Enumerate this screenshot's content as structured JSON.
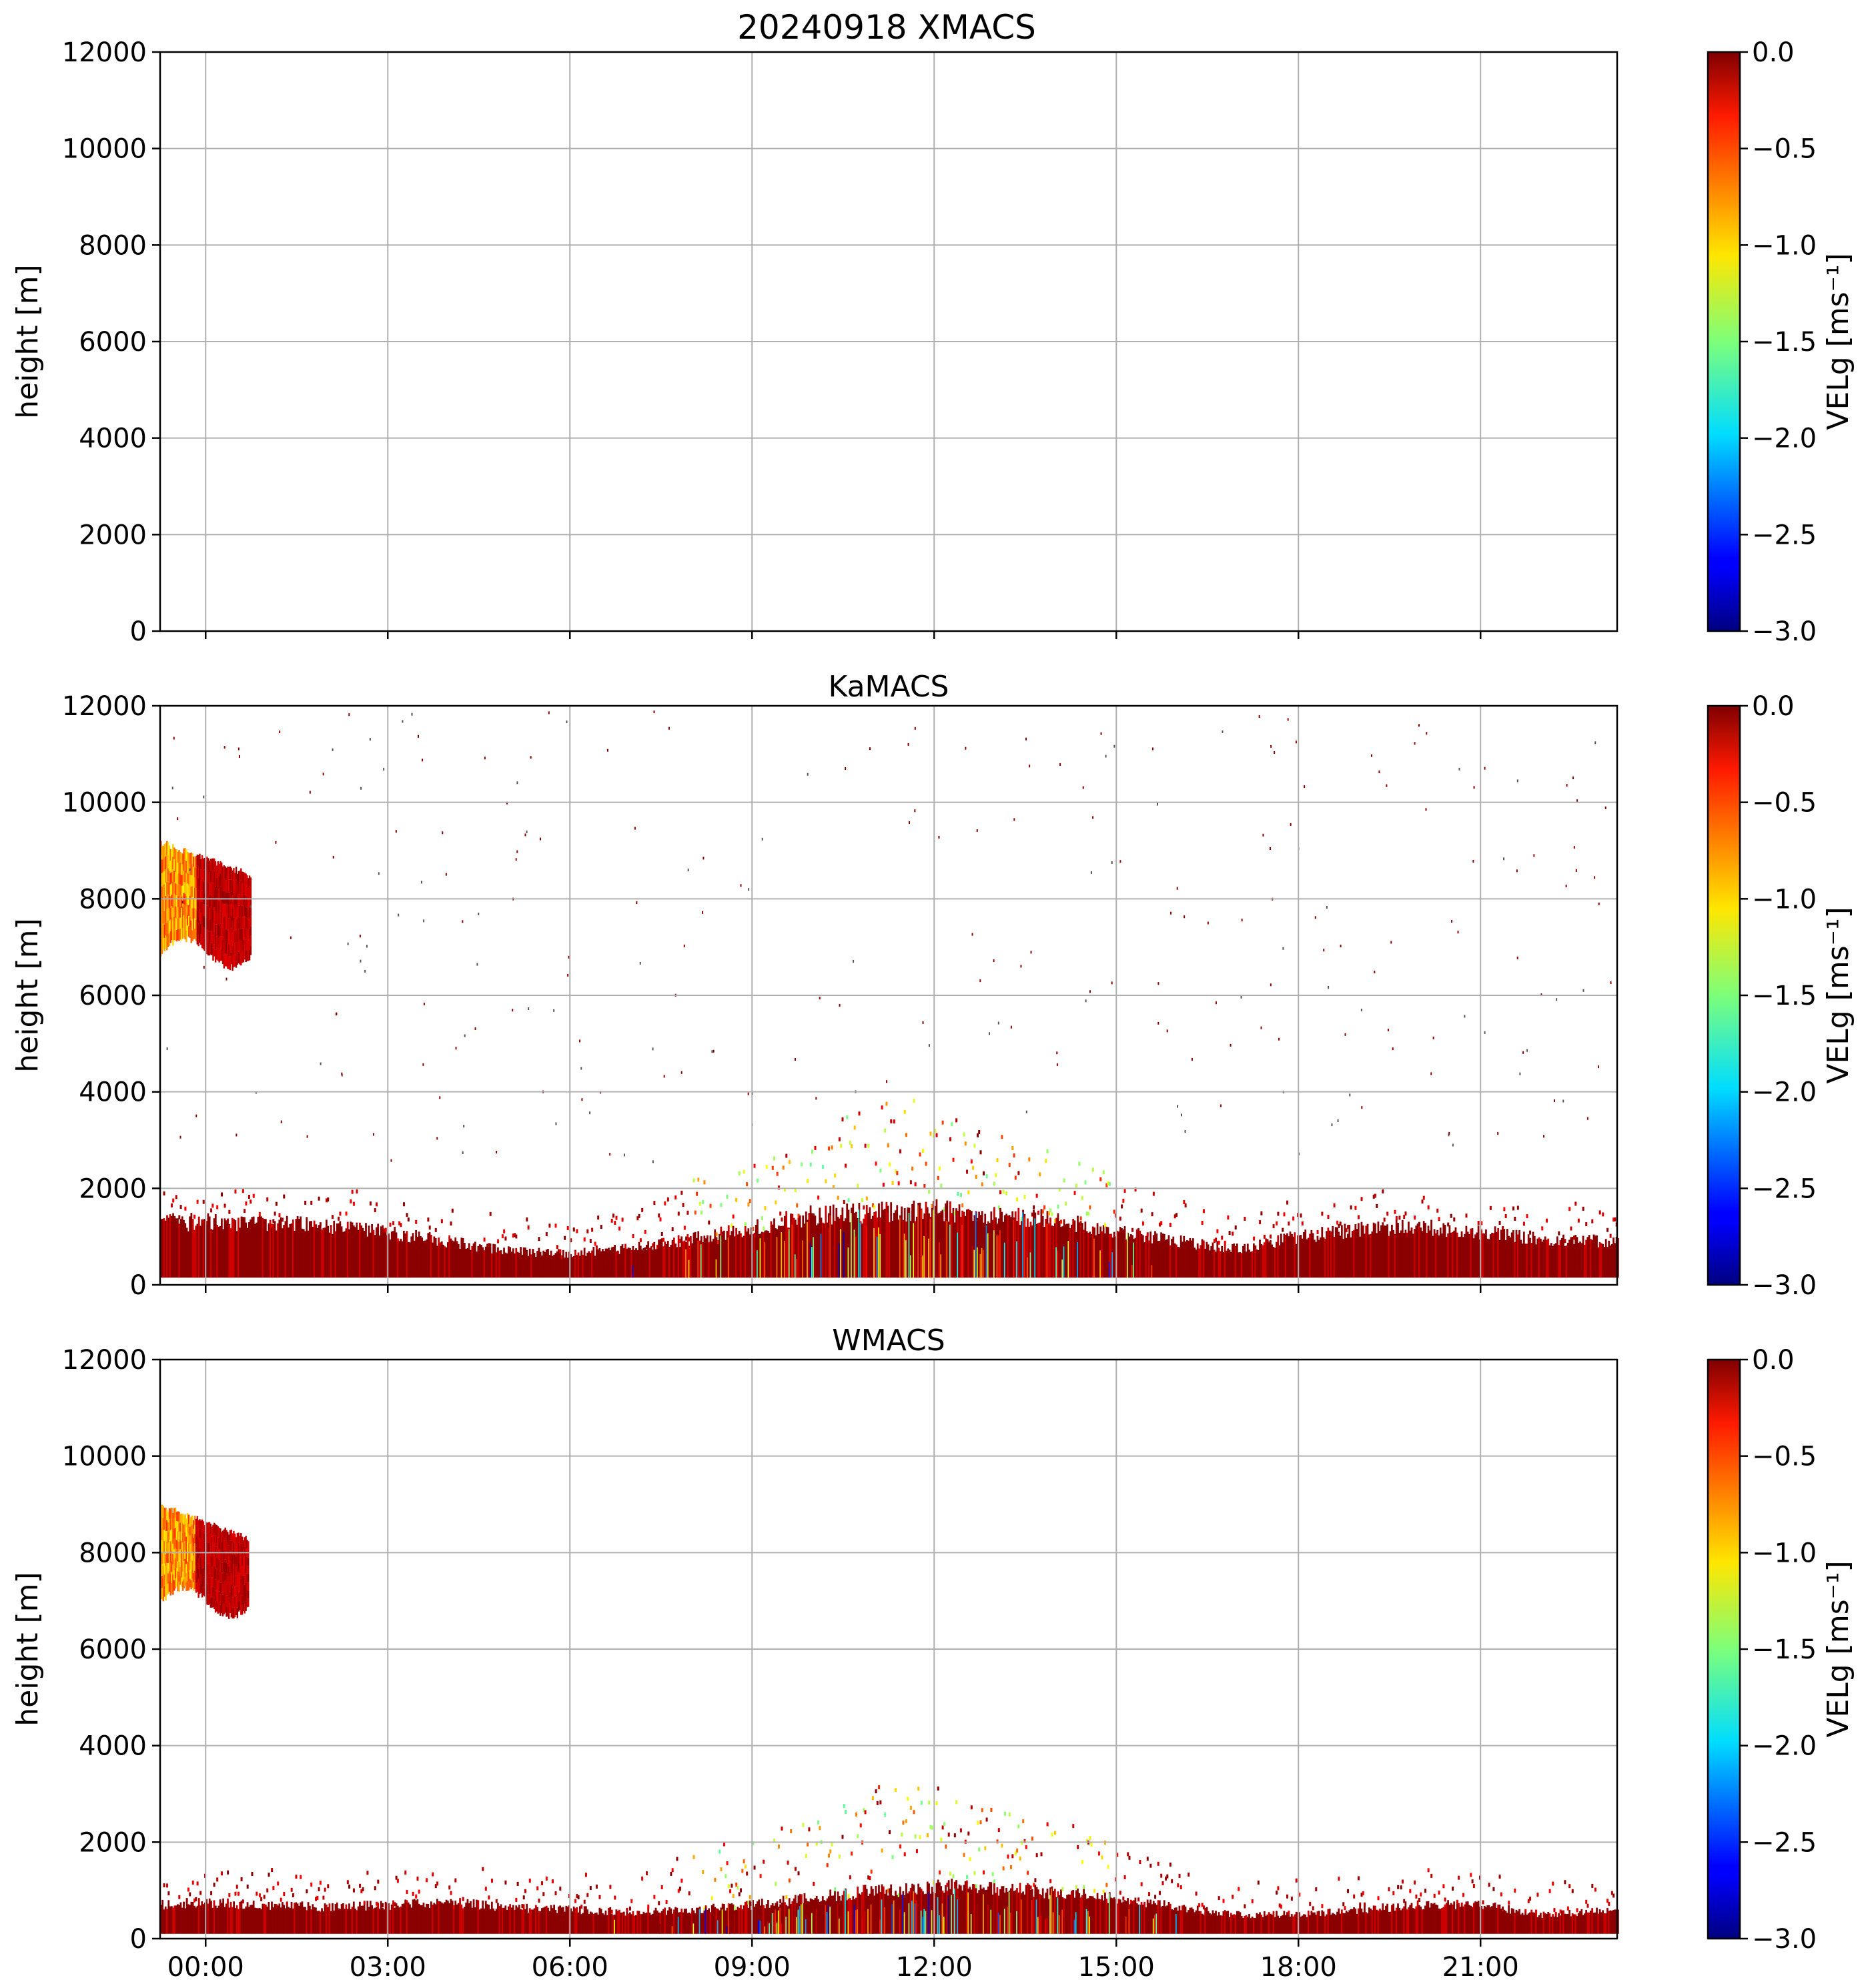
{
  "figure": {
    "title": "20240918 XMACS"
  },
  "chart_data": [
    {
      "type": "heatmap",
      "title": "20240918 XMACS",
      "ylabel": "height [m]",
      "ylim": [
        0,
        12000
      ],
      "yticks": [
        "0",
        "2000",
        "4000",
        "6000",
        "8000",
        "10000",
        "12000"
      ],
      "xlim_hours": [
        -0.75,
        23.25
      ],
      "xticks": [
        "00:00",
        "03:00",
        "06:00",
        "09:00",
        "12:00",
        "15:00",
        "18:00",
        "21:00"
      ],
      "xticks_visible": false,
      "grid": true,
      "has_data": false,
      "colorbar": {
        "label": "VELg [ms⁻¹]",
        "range": [
          -3.0,
          0.0
        ],
        "ticks": [
          "0.0",
          "−0.5",
          "−1.0",
          "−1.5",
          "−2.0",
          "−2.5",
          "−3.0"
        ],
        "colormap": "jet"
      }
    },
    {
      "type": "heatmap",
      "title": "KaMACS",
      "ylabel": "height [m]",
      "ylim": [
        0,
        12000
      ],
      "yticks": [
        "0",
        "2000",
        "4000",
        "6000",
        "8000",
        "10000",
        "12000"
      ],
      "xlim_hours": [
        -0.75,
        23.25
      ],
      "xticks": [
        "00:00",
        "03:00",
        "06:00",
        "09:00",
        "12:00",
        "15:00",
        "18:00",
        "21:00"
      ],
      "xticks_visible": false,
      "grid": true,
      "has_data": true,
      "upper_cloud": {
        "start_hour": -0.75,
        "end_hour": 0.75,
        "base_m": 6600,
        "top_m": 9100,
        "velocity_range": [
          -1.2,
          -0.1
        ]
      },
      "boundary_layer": {
        "hours": [
          -0.75,
          0,
          1,
          2,
          3,
          4,
          5,
          6,
          7,
          8,
          9,
          10,
          11,
          12,
          13,
          14,
          15,
          16,
          17,
          18,
          19,
          20,
          21,
          22,
          23.25
        ],
        "top_m": [
          1300,
          1300,
          1300,
          1200,
          1100,
          900,
          700,
          650,
          750,
          950,
          1200,
          1450,
          1500,
          1550,
          1450,
          1350,
          1100,
          900,
          750,
          1000,
          1150,
          1200,
          1100,
          950,
          900
        ],
        "base_m": 150,
        "velocity_range": [
          -3.0,
          0.0
        ]
      },
      "colorbar": {
        "label": "VELg [ms⁻¹]",
        "range": [
          -3.0,
          0.0
        ],
        "ticks": [
          "0.0",
          "−0.5",
          "−1.0",
          "−1.5",
          "−2.0",
          "−2.5",
          "−3.0"
        ],
        "colormap": "jet"
      }
    },
    {
      "type": "heatmap",
      "title": "WMACS",
      "ylabel": "height [m]",
      "ylim": [
        0,
        12000
      ],
      "yticks": [
        "0",
        "2000",
        "4000",
        "6000",
        "8000",
        "10000",
        "12000"
      ],
      "xlim_hours": [
        -0.75,
        23.25
      ],
      "xticks": [
        "00:00",
        "03:00",
        "06:00",
        "09:00",
        "12:00",
        "15:00",
        "18:00",
        "21:00"
      ],
      "xticks_visible": true,
      "grid": true,
      "has_data": true,
      "upper_cloud": {
        "start_hour": -0.75,
        "end_hour": 0.7,
        "base_m": 6700,
        "top_m": 8900,
        "velocity_range": [
          -1.2,
          -0.1
        ]
      },
      "boundary_layer": {
        "hours": [
          -0.75,
          0,
          1,
          2,
          3,
          4,
          5,
          6,
          7,
          8,
          9,
          10,
          11,
          12,
          13,
          14,
          15,
          16,
          17,
          18,
          19,
          20,
          21,
          22,
          23.25
        ],
        "top_m": [
          700,
          750,
          700,
          650,
          700,
          750,
          650,
          600,
          550,
          600,
          700,
          850,
          1000,
          1100,
          1050,
          950,
          850,
          650,
          500,
          500,
          600,
          700,
          700,
          500,
          600
        ],
        "base_m": 100,
        "velocity_range": [
          -3.0,
          0.0
        ]
      },
      "colorbar": {
        "label": "VELg [ms⁻¹]",
        "range": [
          -3.0,
          0.0
        ],
        "ticks": [
          "0.0",
          "−0.5",
          "−1.0",
          "−1.5",
          "−2.0",
          "−2.5",
          "−3.0"
        ],
        "colormap": "jet"
      }
    }
  ]
}
